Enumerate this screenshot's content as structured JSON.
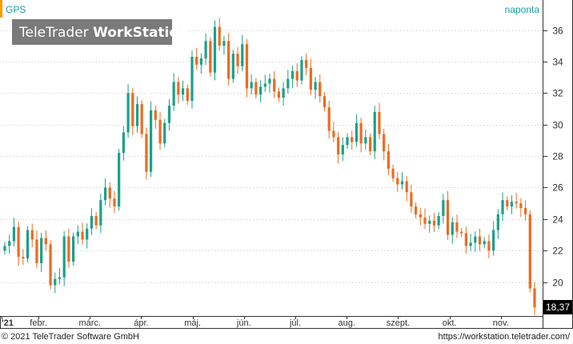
{
  "header": {
    "symbol": "GPS",
    "interval": "naponta",
    "watermark_light": "TeleTrader ",
    "watermark_bold": "WorkStation"
  },
  "footer": {
    "copyright": "© 2021  TeleTrader Software GmbH",
    "url": "https://workstation.teletrader.com/"
  },
  "colors": {
    "up": "#1aa08a",
    "down": "#ee6a1f",
    "accent": "#ff9a00",
    "symbol_text": "#1a9fa0",
    "last_price_bg": "#000000"
  },
  "chart_data": {
    "type": "candlestick",
    "y_range": [
      18,
      37.5
    ],
    "y_ticks": [
      20,
      22,
      24,
      26,
      28,
      30,
      32,
      34,
      36
    ],
    "y_tick_labels": [
      "20",
      "22",
      "24",
      "26",
      "28",
      "30",
      "32",
      "34",
      "36"
    ],
    "x_labels": [
      "'21",
      "febr.",
      "márc.",
      "ápr.",
      "máj.",
      "jún.",
      "júl.",
      "aug.",
      "szept.",
      "okt.",
      "nov."
    ],
    "last_price": 18.37,
    "last_price_label": "18,37",
    "grid": true,
    "series": [
      {
        "values": [
          22.3,
          22.6,
          23.5,
          21.6,
          21.5,
          23.3,
          22.7,
          21.2,
          22.8,
          22.4,
          19.8,
          20.2,
          20.3,
          22.9,
          21.3,
          22.9,
          23.2,
          22.7,
          23.4,
          24.2,
          23.6,
          25.2,
          26.0,
          25.3,
          24.8,
          28.2,
          29.5,
          32.0,
          29.9,
          31.3,
          29.4,
          27.0,
          30.9,
          30.3,
          28.8,
          30.1,
          31.2,
          32.7,
          31.9,
          32.3,
          31.5,
          34.3,
          33.8,
          34.2,
          35.3,
          33.3,
          36.2,
          35.0,
          35.3,
          32.9,
          34.5,
          33.7,
          35.1,
          32.3,
          32.7,
          31.9,
          32.4,
          32.6,
          32.9,
          32.1,
          31.7,
          32.3,
          32.9,
          33.4,
          32.8,
          34.1,
          33.6,
          32.2,
          32.7,
          31.8,
          31.1,
          29.6,
          29.2,
          28.1,
          28.7,
          29.2,
          28.9,
          30.1,
          28.8,
          29.2,
          28.3,
          30.8,
          29.4,
          28.3,
          27.2,
          26.6,
          26.2,
          26.4,
          25.7,
          24.8,
          24.3,
          24.1,
          23.7,
          23.9,
          23.6,
          24.2,
          25.2,
          23.0,
          23.8,
          23.2,
          23.1,
          22.3,
          22.5,
          22.9,
          22.4,
          22.6,
          22.0,
          23.3,
          24.3,
          25.2,
          24.8,
          25.1,
          25.0,
          24.7,
          24.3,
          19.6,
          18.4
        ]
      }
    ]
  }
}
